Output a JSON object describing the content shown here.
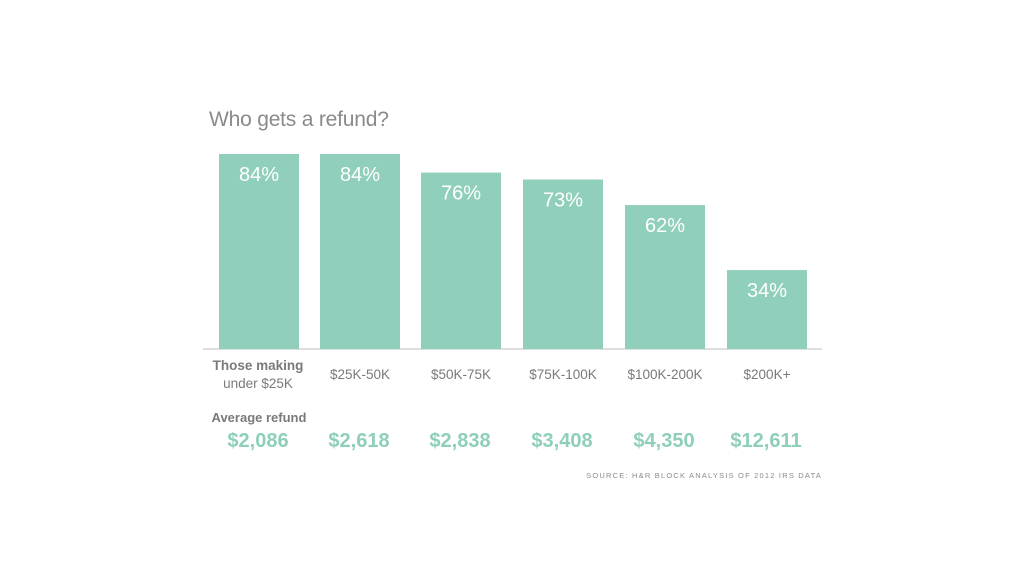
{
  "colors": {
    "bar": "#90cfbb",
    "axis": "#bdbdbd",
    "refund": "#8ecfb9"
  },
  "chart_data": {
    "type": "bar",
    "title": "Who gets a refund?",
    "categories": [
      [
        "Those making",
        "under $25K"
      ],
      [
        "$25K-50K"
      ],
      [
        "$50K-75K"
      ],
      [
        "$75K-100K"
      ],
      [
        "$100K-200K"
      ],
      [
        "$200K+"
      ]
    ],
    "values": [
      84,
      84,
      76,
      73,
      62,
      34
    ],
    "value_labels": [
      "84%",
      "84%",
      "76%",
      "73%",
      "62%",
      "34%"
    ],
    "ylim": [
      0,
      84
    ],
    "grid": false,
    "secondary_row": {
      "heading": "Average refund",
      "values": [
        "$2,086",
        "$2,618",
        "$2,838",
        "$3,408",
        "$4,350",
        "$12,611"
      ]
    },
    "source": "SOURCE: H&R BLOCK ANALYSIS OF 2012 IRS DATA"
  }
}
